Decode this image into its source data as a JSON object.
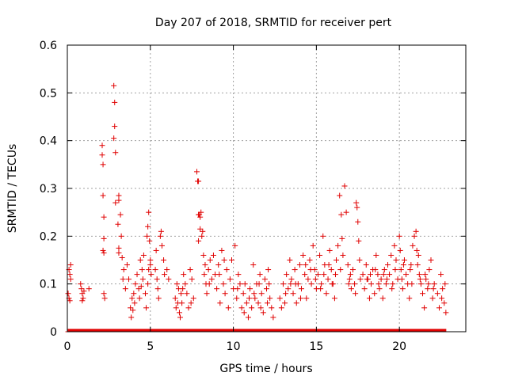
{
  "chart_data": {
    "type": "scatter",
    "title": "Day 207 of 2018, SRMTID for receiver pert",
    "xlabel": "GPS time / hours",
    "ylabel": "SRMTID / TECUs",
    "xlim": [
      0,
      24
    ],
    "ylim": [
      0,
      0.6
    ],
    "xticks": [
      0,
      5,
      10,
      15,
      20
    ],
    "xtick_labels": [
      "0",
      "5",
      "10",
      "15",
      "20"
    ],
    "yticks": [
      0,
      0.1,
      0.2,
      0.3,
      0.4,
      0.5,
      0.6
    ],
    "ytick_labels": [
      "0",
      "0.1",
      "0.2",
      "0.3",
      "0.4",
      "0.5",
      "0.6"
    ],
    "grid": true,
    "marker": "+",
    "series": [
      {
        "name": "SRMTID",
        "color": "#e00000",
        "points": [
          [
            0.05,
            0.08
          ],
          [
            0.1,
            0.07
          ],
          [
            0.1,
            0.13
          ],
          [
            0.15,
            0.12
          ],
          [
            0.2,
            0.14
          ],
          [
            0.2,
            0.11
          ],
          [
            0.15,
            0.065
          ],
          [
            0.8,
            0.1
          ],
          [
            0.85,
            0.09
          ],
          [
            0.9,
            0.08
          ],
          [
            0.95,
            0.07
          ],
          [
            1.0,
            0.085
          ],
          [
            0.9,
            0.065
          ],
          [
            1.3,
            0.09
          ],
          [
            2.1,
            0.39
          ],
          [
            2.1,
            0.37
          ],
          [
            2.15,
            0.35
          ],
          [
            2.15,
            0.285
          ],
          [
            2.2,
            0.24
          ],
          [
            2.2,
            0.195
          ],
          [
            2.15,
            0.17
          ],
          [
            2.2,
            0.165
          ],
          [
            2.2,
            0.08
          ],
          [
            2.25,
            0.07
          ],
          [
            2.8,
            0.515
          ],
          [
            2.85,
            0.48
          ],
          [
            2.85,
            0.43
          ],
          [
            2.8,
            0.405
          ],
          [
            2.9,
            0.375
          ],
          [
            2.9,
            0.27
          ],
          [
            3.1,
            0.285
          ],
          [
            3.1,
            0.275
          ],
          [
            3.05,
            0.225
          ],
          [
            3.2,
            0.245
          ],
          [
            3.1,
            0.175
          ],
          [
            3.1,
            0.165
          ],
          [
            3.25,
            0.2
          ],
          [
            3.3,
            0.155
          ],
          [
            3.4,
            0.13
          ],
          [
            3.35,
            0.11
          ],
          [
            3.5,
            0.09
          ],
          [
            3.6,
            0.14
          ],
          [
            3.7,
            0.11
          ],
          [
            3.8,
            0.05
          ],
          [
            3.85,
            0.03
          ],
          [
            3.9,
            0.07
          ],
          [
            4.0,
            0.08
          ],
          [
            4.05,
            0.06
          ],
          [
            4.1,
            0.1
          ],
          [
            4.2,
            0.12
          ],
          [
            4.3,
            0.09
          ],
          [
            4.35,
            0.07
          ],
          [
            4.4,
            0.15
          ],
          [
            4.5,
            0.13
          ],
          [
            4.55,
            0.11
          ],
          [
            4.6,
            0.16
          ],
          [
            4.7,
            0.08
          ],
          [
            4.75,
            0.05
          ],
          [
            4.8,
            0.2
          ],
          [
            4.85,
            0.22
          ],
          [
            4.9,
            0.25
          ],
          [
            4.95,
            0.19
          ],
          [
            4.85,
            0.1
          ],
          [
            4.9,
            0.13
          ],
          [
            5.0,
            0.15
          ],
          [
            5.3,
            0.13
          ],
          [
            5.35,
            0.17
          ],
          [
            5.4,
            0.11
          ],
          [
            5.45,
            0.09
          ],
          [
            5.5,
            0.07
          ],
          [
            5.6,
            0.2
          ],
          [
            5.65,
            0.21
          ],
          [
            5.7,
            0.18
          ],
          [
            5.8,
            0.15
          ],
          [
            5.85,
            0.12
          ],
          [
            6.0,
            0.13
          ],
          [
            6.1,
            0.11
          ],
          [
            6.5,
            0.07
          ],
          [
            6.55,
            0.05
          ],
          [
            6.6,
            0.1
          ],
          [
            6.65,
            0.06
          ],
          [
            6.7,
            0.09
          ],
          [
            6.75,
            0.04
          ],
          [
            6.8,
            0.03
          ],
          [
            6.85,
            0.08
          ],
          [
            6.9,
            0.06
          ],
          [
            7.0,
            0.12
          ],
          [
            7.1,
            0.1
          ],
          [
            7.2,
            0.08
          ],
          [
            7.3,
            0.05
          ],
          [
            7.4,
            0.13
          ],
          [
            7.5,
            0.11
          ],
          [
            7.6,
            0.07
          ],
          [
            7.8,
            0.335
          ],
          [
            7.85,
            0.315
          ],
          [
            7.9,
            0.315
          ],
          [
            7.9,
            0.245
          ],
          [
            7.95,
            0.245
          ],
          [
            8.0,
            0.24
          ],
          [
            8.05,
            0.25
          ],
          [
            8.0,
            0.215
          ],
          [
            8.1,
            0.2
          ],
          [
            8.15,
            0.21
          ],
          [
            7.9,
            0.19
          ],
          [
            8.2,
            0.16
          ],
          [
            8.3,
            0.14
          ],
          [
            8.25,
            0.12
          ],
          [
            8.35,
            0.1
          ],
          [
            8.4,
            0.08
          ],
          [
            8.5,
            0.13
          ],
          [
            8.6,
            0.15
          ],
          [
            8.7,
            0.11
          ],
          [
            8.8,
            0.16
          ],
          [
            8.9,
            0.12
          ],
          [
            9.0,
            0.09
          ],
          [
            9.1,
            0.14
          ],
          [
            9.2,
            0.06
          ],
          [
            9.3,
            0.17
          ],
          [
            9.4,
            0.1
          ],
          [
            9.5,
            0.08
          ],
          [
            9.6,
            0.13
          ],
          [
            9.7,
            0.05
          ],
          [
            9.8,
            0.11
          ],
          [
            9.9,
            0.15
          ],
          [
            10.0,
            0.09
          ],
          [
            10.1,
            0.18
          ],
          [
            10.2,
            0.07
          ],
          [
            10.3,
            0.12
          ],
          [
            10.4,
            0.1
          ],
          [
            10.5,
            0.05
          ],
          [
            10.6,
            0.08
          ],
          [
            10.65,
            0.04
          ],
          [
            10.7,
            0.1
          ],
          [
            10.8,
            0.06
          ],
          [
            10.9,
            0.03
          ],
          [
            11.0,
            0.09
          ],
          [
            11.1,
            0.05
          ],
          [
            11.2,
            0.14
          ],
          [
            11.3,
            0.07
          ],
          [
            11.4,
            0.1
          ],
          [
            11.5,
            0.06
          ],
          [
            11.6,
            0.12
          ],
          [
            11.7,
            0.08
          ],
          [
            11.8,
            0.04
          ],
          [
            11.9,
            0.11
          ],
          [
            12.0,
            0.09
          ],
          [
            12.1,
            0.13
          ],
          [
            12.2,
            0.07
          ],
          [
            12.3,
            0.05
          ],
          [
            12.4,
            0.03
          ],
          [
            12.8,
            0.07
          ],
          [
            12.9,
            0.05
          ],
          [
            13.0,
            0.1
          ],
          [
            13.1,
            0.06
          ],
          [
            13.2,
            0.12
          ],
          [
            13.3,
            0.09
          ],
          [
            13.4,
            0.15
          ],
          [
            13.5,
            0.11
          ],
          [
            13.6,
            0.08
          ],
          [
            13.7,
            0.13
          ],
          [
            13.8,
            0.06
          ],
          [
            13.9,
            0.1
          ],
          [
            14.0,
            0.14
          ],
          [
            14.1,
            0.09
          ],
          [
            14.2,
            0.16
          ],
          [
            14.3,
            0.12
          ],
          [
            14.4,
            0.07
          ],
          [
            14.5,
            0.11
          ],
          [
            14.6,
            0.15
          ],
          [
            14.7,
            0.1
          ],
          [
            14.8,
            0.18
          ],
          [
            14.9,
            0.13
          ],
          [
            15.0,
            0.09
          ],
          [
            15.1,
            0.12
          ],
          [
            15.2,
            0.16
          ],
          [
            15.3,
            0.1
          ],
          [
            15.4,
            0.2
          ],
          [
            15.5,
            0.14
          ],
          [
            15.6,
            0.08
          ],
          [
            15.7,
            0.11
          ],
          [
            15.8,
            0.17
          ],
          [
            15.9,
            0.13
          ],
          [
            16.0,
            0.1
          ],
          [
            16.1,
            0.07
          ],
          [
            16.2,
            0.15
          ],
          [
            16.3,
            0.18
          ],
          [
            16.4,
            0.285
          ],
          [
            16.5,
            0.245
          ],
          [
            16.55,
            0.195
          ],
          [
            16.6,
            0.16
          ],
          [
            16.7,
            0.305
          ],
          [
            16.8,
            0.25
          ],
          [
            16.9,
            0.14
          ],
          [
            17.0,
            0.11
          ],
          [
            17.1,
            0.09
          ],
          [
            17.2,
            0.13
          ],
          [
            17.3,
            0.1
          ],
          [
            17.4,
            0.27
          ],
          [
            17.45,
            0.26
          ],
          [
            17.5,
            0.23
          ],
          [
            17.55,
            0.19
          ],
          [
            17.6,
            0.15
          ],
          [
            17.8,
            0.12
          ],
          [
            17.9,
            0.09
          ],
          [
            18.0,
            0.14
          ],
          [
            18.1,
            0.11
          ],
          [
            18.2,
            0.07
          ],
          [
            18.3,
            0.1
          ],
          [
            18.4,
            0.13
          ],
          [
            18.5,
            0.08
          ],
          [
            18.6,
            0.16
          ],
          [
            18.7,
            0.12
          ],
          [
            18.8,
            0.09
          ],
          [
            18.9,
            0.11
          ],
          [
            19.0,
            0.07
          ],
          [
            19.1,
            0.13
          ],
          [
            19.2,
            0.1
          ],
          [
            19.3,
            0.14
          ],
          [
            19.4,
            0.12
          ],
          [
            19.5,
            0.16
          ],
          [
            19.6,
            0.1
          ],
          [
            19.7,
            0.18
          ],
          [
            19.8,
            0.15
          ],
          [
            19.9,
            0.11
          ],
          [
            20.0,
            0.2
          ],
          [
            20.05,
            0.17
          ],
          [
            20.1,
            0.13
          ],
          [
            20.2,
            0.09
          ],
          [
            20.3,
            0.15
          ],
          [
            20.4,
            0.12
          ],
          [
            20.5,
            0.1
          ],
          [
            20.6,
            0.07
          ],
          [
            20.7,
            0.14
          ],
          [
            20.8,
            0.18
          ],
          [
            20.9,
            0.2
          ],
          [
            21.0,
            0.21
          ],
          [
            21.05,
            0.17
          ],
          [
            21.1,
            0.14
          ],
          [
            21.2,
            0.12
          ],
          [
            21.3,
            0.1
          ],
          [
            21.4,
            0.08
          ],
          [
            21.5,
            0.05
          ],
          [
            21.6,
            0.11
          ],
          [
            21.7,
            0.09
          ],
          [
            21.8,
            0.13
          ],
          [
            21.9,
            0.15
          ],
          [
            22.0,
            0.07
          ],
          [
            22.1,
            0.1
          ],
          [
            22.3,
            0.08
          ],
          [
            22.4,
            0.05
          ],
          [
            22.5,
            0.12
          ],
          [
            22.6,
            0.09
          ],
          [
            22.7,
            0.06
          ],
          [
            22.75,
            0.1
          ],
          [
            22.8,
            0.04
          ],
          [
            5.0,
            0.14
          ],
          [
            5.05,
            0.12
          ],
          [
            4.45,
            0.095
          ],
          [
            3.95,
            0.045
          ],
          [
            6.95,
            0.09
          ],
          [
            7.45,
            0.06
          ],
          [
            8.55,
            0.1
          ],
          [
            9.15,
            0.12
          ],
          [
            9.45,
            0.15
          ],
          [
            10.25,
            0.09
          ],
          [
            10.95,
            0.07
          ],
          [
            11.55,
            0.1
          ],
          [
            12.05,
            0.06
          ],
          [
            13.45,
            0.1
          ],
          [
            14.05,
            0.07
          ],
          [
            14.65,
            0.13
          ],
          [
            15.25,
            0.09
          ],
          [
            15.75,
            0.14
          ],
          [
            16.15,
            0.12
          ],
          [
            16.95,
            0.1
          ],
          [
            17.35,
            0.08
          ],
          [
            18.05,
            0.11
          ],
          [
            18.55,
            0.13
          ],
          [
            19.05,
            0.12
          ],
          [
            19.55,
            0.09
          ],
          [
            20.15,
            0.11
          ],
          [
            20.65,
            0.13
          ],
          [
            21.15,
            0.16
          ],
          [
            21.55,
            0.12
          ],
          [
            22.05,
            0.09
          ],
          [
            22.55,
            0.07
          ],
          [
            11.25,
            0.08
          ],
          [
            11.65,
            0.05
          ],
          [
            12.15,
            0.1
          ],
          [
            13.15,
            0.08
          ],
          [
            13.75,
            0.1
          ],
          [
            14.35,
            0.14
          ],
          [
            14.95,
            0.11
          ],
          [
            15.45,
            0.12
          ],
          [
            15.95,
            0.1
          ],
          [
            16.45,
            0.13
          ],
          [
            17.05,
            0.12
          ],
          [
            17.65,
            0.11
          ],
          [
            18.25,
            0.12
          ],
          [
            18.75,
            0.1
          ],
          [
            19.25,
            0.11
          ],
          [
            19.75,
            0.13
          ],
          [
            20.25,
            0.14
          ],
          [
            20.75,
            0.1
          ],
          [
            21.25,
            0.11
          ],
          [
            21.75,
            0.1
          ]
        ]
      },
      {
        "name": "zero",
        "color": "#e00000",
        "x_range": [
          0.05,
          22.8
        ],
        "y": 0
      }
    ]
  }
}
